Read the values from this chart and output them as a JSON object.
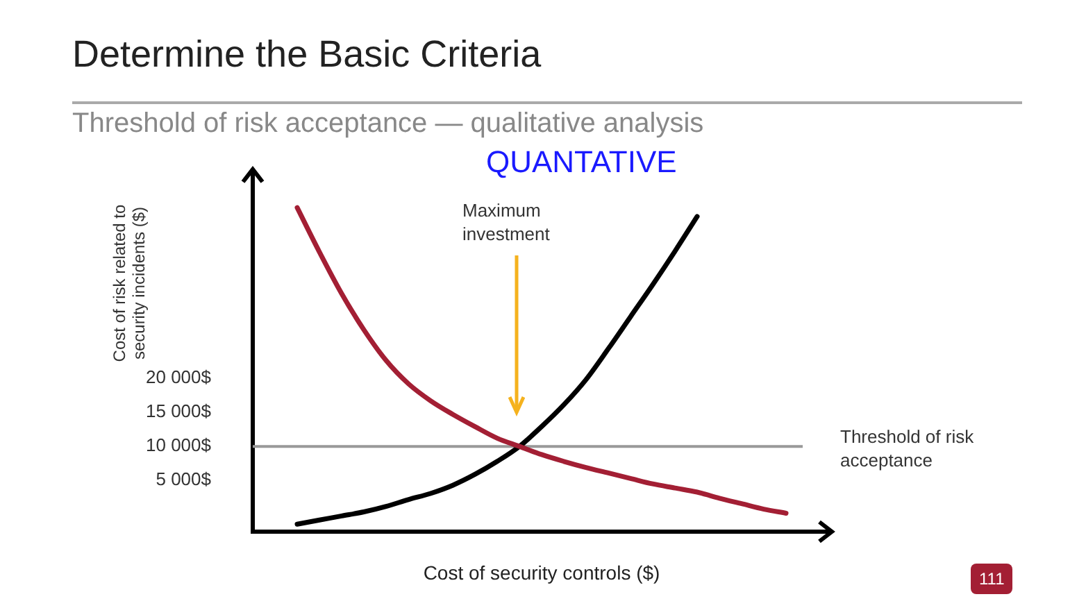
{
  "chart_data": {
    "type": "line",
    "title": "Determine the Basic Criteria",
    "subtitle": "Threshold of risk acceptance — qualitative analysis",
    "xlabel": "Cost of security controls ($)",
    "ylabel": "Cost of risk related to security incidents ($)",
    "annotations": [
      "QUANTATIVE",
      "Maximum investment",
      "111"
    ],
    "categories": [
      null,
      null,
      null,
      null,
      null,
      null,
      null,
      null,
      null,
      null,
      null,
      null,
      null,
      null,
      null,
      null,
      null,
      null,
      null,
      null,
      null,
      null,
      null,
      null,
      null,
      null,
      null
    ],
    "series": [
      {
        "color": "#a31f34",
        "values": [
          null,
          null,
          45000,
          38500,
          32400,
          27100,
          22600,
          19200,
          16700,
          14700,
          12900,
          11200,
          10000,
          8800,
          7800,
          6900,
          6100,
          5300,
          4500,
          3900,
          3300,
          2400,
          1600,
          800,
          200,
          null,
          null
        ]
      },
      {
        "color": "#000000",
        "values": [
          null,
          null,
          -1400,
          -800,
          -200,
          400,
          1200,
          2200,
          3100,
          4300,
          5900,
          7800,
          10000,
          12900,
          16100,
          19800,
          24300,
          29000,
          33700,
          38600,
          43700,
          null,
          null,
          null,
          null,
          null,
          null
        ]
      }
    ],
    "ylim": [
      -2500,
      50000
    ],
    "yticks": [
      {
        "value": 5000,
        "label": "5 000$"
      },
      {
        "value": 10000,
        "label": "10 000$"
      },
      {
        "value": 15000,
        "label": "15 000$"
      },
      {
        "value": 20000,
        "label": "20 000$"
      }
    ],
    "ref_lines": [
      {
        "axis": "y",
        "value": 10000,
        "label": "Threshold of risk acceptance",
        "color": "#999999"
      }
    ],
    "grid": false,
    "legend": false,
    "tick_labels": "y",
    "marker": "none",
    "line_style": "solid"
  }
}
